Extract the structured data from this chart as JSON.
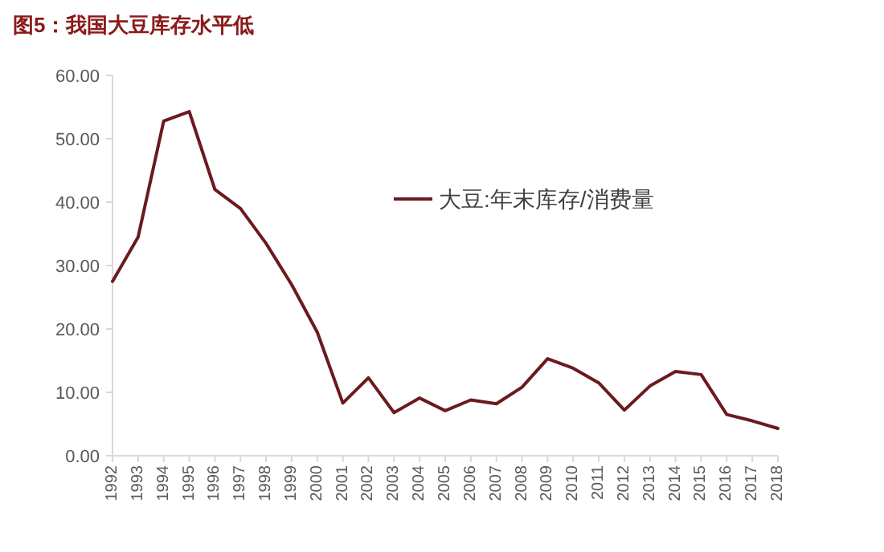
{
  "chart_data": {
    "type": "line",
    "title": "图5：我国大豆库存水平低",
    "categories": [
      "1992",
      "1993",
      "1994",
      "1995",
      "1996",
      "1997",
      "1998",
      "1999",
      "2000",
      "2001",
      "2002",
      "2003",
      "2004",
      "2005",
      "2006",
      "2007",
      "2008",
      "2009",
      "2010",
      "2011",
      "2012",
      "2013",
      "2014",
      "2015",
      "2016",
      "2017",
      "2018"
    ],
    "series": [
      {
        "name": "大豆:年末库存/消费量",
        "color": "#6b1a1f",
        "values": [
          27.5,
          34.5,
          52.8,
          54.3,
          42,
          39,
          33.5,
          27,
          19.5,
          8.3,
          12.3,
          6.8,
          9.1,
          7.1,
          8.8,
          8.2,
          10.8,
          15.3,
          13.8,
          11.5,
          7.2,
          11,
          13.3,
          12.8,
          6.5,
          5.5,
          4.3
        ]
      }
    ],
    "ylim": [
      0,
      60
    ],
    "yticks": [
      {
        "value": 0,
        "label": "0.00"
      },
      {
        "value": 10,
        "label": "10.00"
      },
      {
        "value": 20,
        "label": "20.00"
      },
      {
        "value": 30,
        "label": "30.00"
      },
      {
        "value": 40,
        "label": "40.00"
      },
      {
        "value": 50,
        "label": "50.00"
      },
      {
        "value": 60,
        "label": "60.00"
      }
    ],
    "grid": false,
    "legend": "top"
  }
}
